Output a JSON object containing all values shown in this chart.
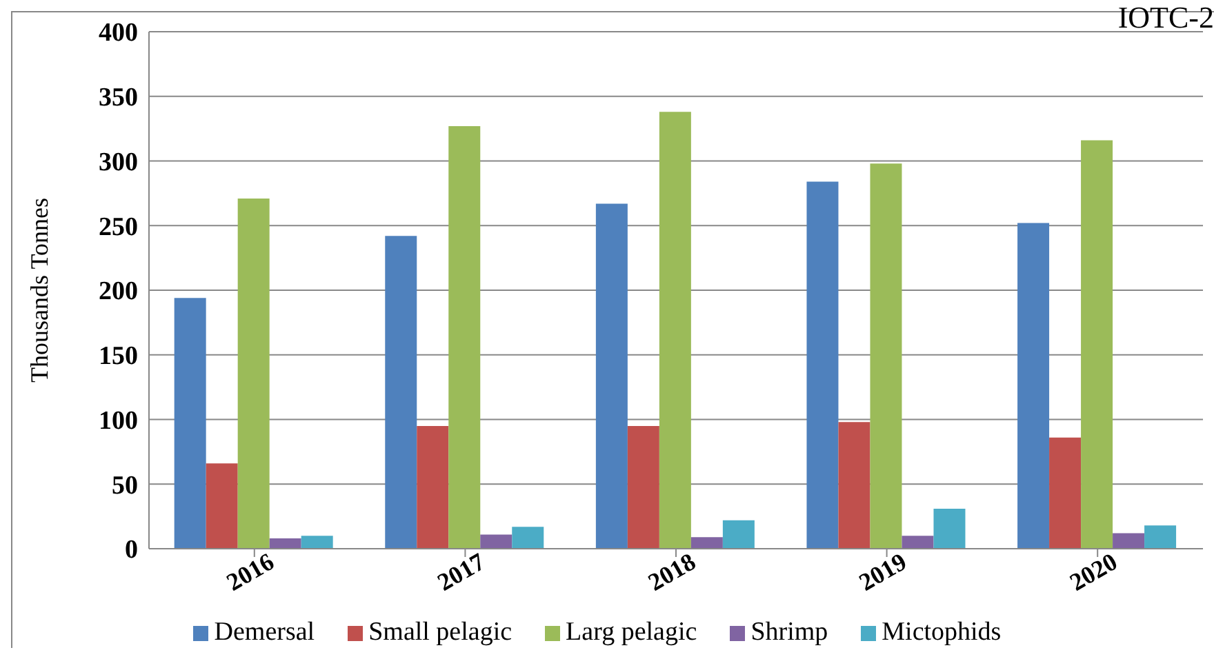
{
  "chart_data": {
    "type": "bar",
    "ylabel": "Thousands Tonnes",
    "annotations": [
      "IOTC-2"
    ],
    "categories": [
      "2016",
      "2017",
      "2018",
      "2019",
      "2020"
    ],
    "series": [
      {
        "name": "Demersal",
        "color": "#4f81bd",
        "values": [
          194,
          242,
          267,
          284,
          252
        ]
      },
      {
        "name": "Small pelagic",
        "color": "#c0504d",
        "values": [
          66,
          95,
          95,
          98,
          86
        ]
      },
      {
        "name": "Larg pelagic",
        "color": "#9bbb59",
        "values": [
          271,
          327,
          338,
          298,
          316
        ]
      },
      {
        "name": "Shrimp",
        "color": "#8064a2",
        "values": [
          8,
          11,
          9,
          10,
          12
        ]
      },
      {
        "name": "Mictophids",
        "color": "#4bacc6",
        "values": [
          10,
          17,
          22,
          31,
          18
        ]
      }
    ],
    "ylim": [
      0,
      400
    ],
    "yticks": [
      0,
      50,
      100,
      150,
      200,
      250,
      300,
      350,
      400
    ],
    "grid": "y",
    "legend": "bottom"
  }
}
